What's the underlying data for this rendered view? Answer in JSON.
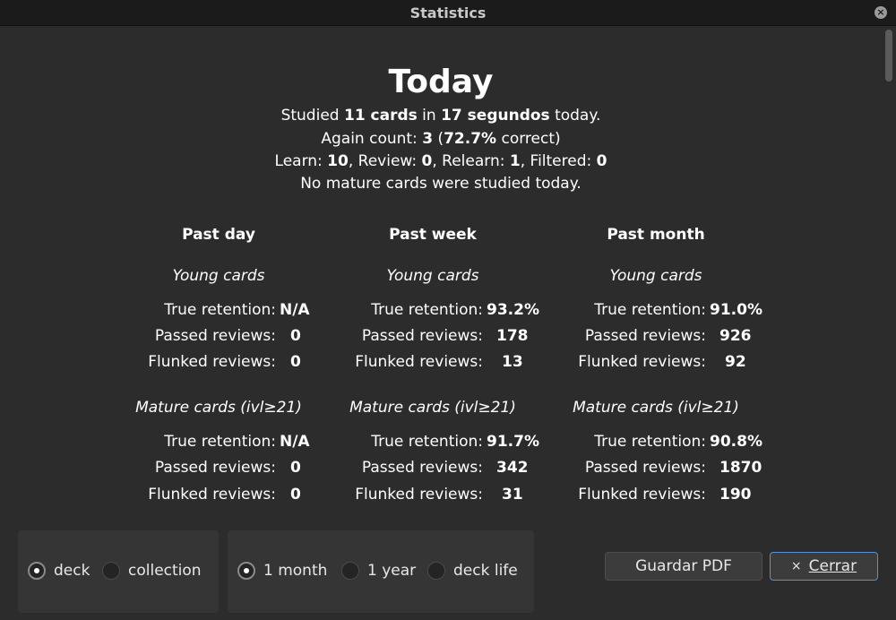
{
  "window": {
    "title": "Statistics"
  },
  "today": {
    "heading": "Today",
    "line1": {
      "a": "Studied ",
      "b": "11 cards",
      "c": " in ",
      "d": "17 segundos",
      "e": " today."
    },
    "line2": {
      "a": "Again count: ",
      "b": "3",
      "c": " (",
      "d": "72.7%",
      "e": " correct)"
    },
    "line3": {
      "a": "Learn: ",
      "b": "10",
      "c": ", Review: ",
      "d": "0",
      "e": ", Relearn: ",
      "f": "1",
      "g": ", Filtered: ",
      "h": "0"
    },
    "line4": "No mature cards were studied today."
  },
  "labels": {
    "young": "Young cards",
    "mature": "Mature cards (ivl≥21)",
    "true_retention": "True retention:",
    "passed": "Passed reviews:",
    "flunked": "Flunked reviews:"
  },
  "columns": [
    {
      "header": "Past day",
      "young": {
        "retention": "N/A",
        "passed": "0",
        "flunked": "0"
      },
      "mature": {
        "retention": "N/A",
        "passed": "0",
        "flunked": "0"
      }
    },
    {
      "header": "Past week",
      "young": {
        "retention": "93.2%",
        "passed": "178",
        "flunked": "13"
      },
      "mature": {
        "retention": "91.7%",
        "passed": "342",
        "flunked": "31"
      }
    },
    {
      "header": "Past month",
      "young": {
        "retention": "91.0%",
        "passed": "926",
        "flunked": "92"
      },
      "mature": {
        "retention": "90.8%",
        "passed": "1870",
        "flunked": "190"
      }
    }
  ],
  "scope": {
    "deck": "deck",
    "collection": "collection",
    "selected": "deck"
  },
  "period": {
    "month": "1 month",
    "year": "1 year",
    "life": "deck life",
    "selected": "1 month"
  },
  "buttons": {
    "save_pdf": "Guardar PDF",
    "close_icon": "×",
    "close": "Cerrar"
  },
  "icons": {
    "titlebar_close": "close-icon"
  }
}
